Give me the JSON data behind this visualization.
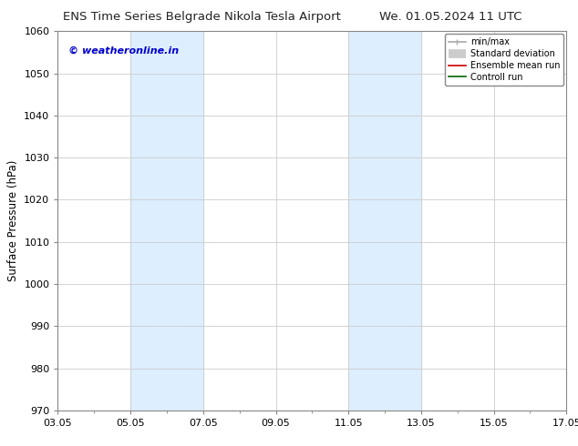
{
  "title_left": "ENS Time Series Belgrade Nikola Tesla Airport",
  "title_right": "We. 01.05.2024 11 UTC",
  "ylabel": "Surface Pressure (hPa)",
  "ylim": [
    970,
    1060
  ],
  "yticks": [
    970,
    980,
    990,
    1000,
    1010,
    1020,
    1030,
    1040,
    1050,
    1060
  ],
  "xlim_dates": [
    "03.05",
    "05.05",
    "07.05",
    "09.05",
    "11.05",
    "13.05",
    "15.05",
    "17.05"
  ],
  "xtick_positions": [
    0,
    2,
    4,
    6,
    8,
    10,
    12,
    14
  ],
  "shaded_columns": [
    {
      "start": 2,
      "end": 4
    },
    {
      "start": 8,
      "end": 10
    }
  ],
  "watermark": "© weatheronline.in",
  "watermark_color": "#0000cc",
  "background_color": "#ffffff",
  "plot_bg_color": "#ffffff",
  "shaded_color": "#ddeeff",
  "legend_items": [
    {
      "label": "min/max",
      "color": "#aaaaaa",
      "lw": 1.2
    },
    {
      "label": "Standard deviation",
      "color": "#cccccc",
      "lw": 7
    },
    {
      "label": "Ensemble mean run",
      "color": "#cc0000",
      "lw": 1.2
    },
    {
      "label": "Controll run",
      "color": "#006600",
      "lw": 1.2
    }
  ],
  "grid_color": "#cccccc",
  "tick_label_fontsize": 8,
  "axis_label_fontsize": 8.5,
  "title_fontsize": 9.5
}
